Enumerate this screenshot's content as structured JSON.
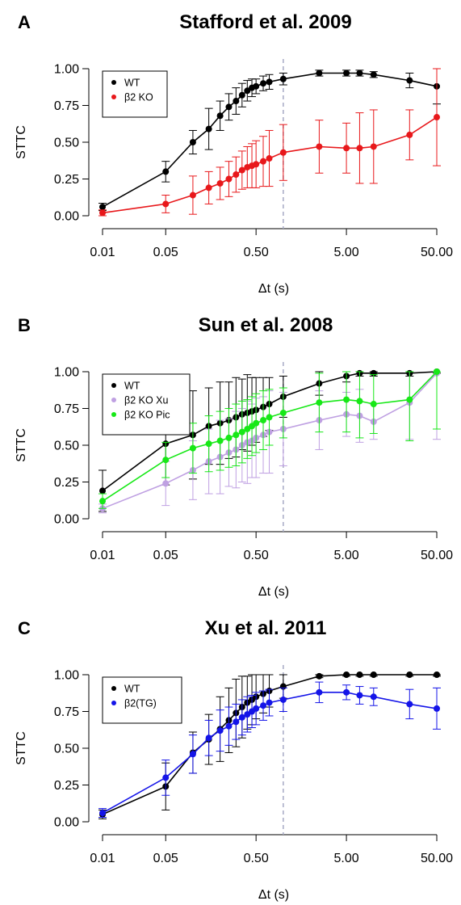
{
  "chart_data": [
    {
      "type": "line",
      "panel_label": "A",
      "title": "Stafford et al. 2009",
      "xlabel": "Δt (s)",
      "ylabel": "STTC",
      "x_scale": "log",
      "x_ticks": [
        0.01,
        0.05,
        0.5,
        5,
        50
      ],
      "x_tick_labels": [
        "0.01",
        "0.05",
        "0.50",
        "5.00",
        "50.00"
      ],
      "y_ticks": [
        0,
        0.25,
        0.5,
        0.75,
        1
      ],
      "y_tick_labels": [
        "0.00",
        "0.25",
        "0.50",
        "0.75",
        "1.00"
      ],
      "ylim": [
        0,
        1
      ],
      "xlim": [
        0.01,
        50
      ],
      "reference_line_x": 1,
      "grid": false,
      "legend_position": "top-left",
      "x": [
        0.01,
        0.05,
        0.1,
        0.15,
        0.2,
        0.25,
        0.3,
        0.35,
        0.4,
        0.45,
        0.5,
        0.6,
        0.7,
        1,
        2.5,
        5,
        7,
        10,
        25,
        50
      ],
      "series": [
        {
          "name": "WT",
          "color": "#000000",
          "values": [
            0.06,
            0.3,
            0.5,
            0.59,
            0.68,
            0.74,
            0.78,
            0.82,
            0.85,
            0.87,
            0.88,
            0.9,
            0.91,
            0.93,
            0.97,
            0.97,
            0.97,
            0.96,
            0.92,
            0.88
          ],
          "err": [
            0.025,
            0.07,
            0.08,
            0.14,
            0.1,
            0.09,
            0.09,
            0.08,
            0.07,
            0.06,
            0.05,
            0.05,
            0.05,
            0.04,
            0.02,
            0.02,
            0.02,
            0.02,
            0.05,
            0.12
          ]
        },
        {
          "name": "β2 KO",
          "color": "#e8181b",
          "values": [
            0.02,
            0.08,
            0.14,
            0.19,
            0.22,
            0.25,
            0.28,
            0.31,
            0.33,
            0.34,
            0.35,
            0.37,
            0.39,
            0.43,
            0.47,
            0.46,
            0.46,
            0.47,
            0.55,
            0.67
          ],
          "err": [
            0.02,
            0.06,
            0.13,
            0.11,
            0.11,
            0.12,
            0.12,
            0.13,
            0.14,
            0.15,
            0.16,
            0.17,
            0.19,
            0.19,
            0.18,
            0.17,
            0.24,
            0.25,
            0.17,
            0.33
          ]
        }
      ]
    },
    {
      "type": "line",
      "panel_label": "B",
      "title": "Sun et al. 2008",
      "xlabel": "Δt (s)",
      "ylabel": "STTC",
      "x_scale": "log",
      "x_ticks": [
        0.01,
        0.05,
        0.5,
        5,
        50
      ],
      "x_tick_labels": [
        "0.01",
        "0.05",
        "0.50",
        "5.00",
        "50.00"
      ],
      "y_ticks": [
        0,
        0.25,
        0.5,
        0.75,
        1
      ],
      "y_tick_labels": [
        "0.00",
        "0.25",
        "0.50",
        "0.75",
        "1.00"
      ],
      "ylim": [
        0,
        1
      ],
      "xlim": [
        0.01,
        50
      ],
      "reference_line_x": 1,
      "grid": false,
      "legend_position": "top-left",
      "x": [
        0.01,
        0.05,
        0.1,
        0.15,
        0.2,
        0.25,
        0.3,
        0.35,
        0.4,
        0.45,
        0.5,
        0.6,
        0.7,
        1,
        2.5,
        5,
        7,
        10,
        25,
        50
      ],
      "series": [
        {
          "name": "WT",
          "color": "#000000",
          "values": [
            0.19,
            0.51,
            0.57,
            0.63,
            0.65,
            0.67,
            0.69,
            0.71,
            0.72,
            0.73,
            0.74,
            0.76,
            0.78,
            0.83,
            0.92,
            0.97,
            0.99,
            0.99,
            0.99,
            1.0
          ],
          "err": [
            0.14,
            0.28,
            0.3,
            0.26,
            0.28,
            0.26,
            0.27,
            0.24,
            0.26,
            0.23,
            0.22,
            0.2,
            0.18,
            0.14,
            0.08,
            0.04,
            0.02,
            0.02,
            0.02,
            0.01
          ]
        },
        {
          "name": "β2 KO Xu",
          "color": "#bfa0e2",
          "values": [
            0.07,
            0.24,
            0.33,
            0.39,
            0.42,
            0.45,
            0.47,
            0.5,
            0.52,
            0.53,
            0.55,
            0.57,
            0.59,
            0.61,
            0.67,
            0.71,
            0.7,
            0.66,
            0.79,
            0.99
          ],
          "err": [
            0.03,
            0.15,
            0.2,
            0.22,
            0.25,
            0.23,
            0.26,
            0.25,
            0.28,
            0.25,
            0.27,
            0.26,
            0.28,
            0.25,
            0.2,
            0.15,
            0.18,
            0.12,
            0.25,
            0.45
          ]
        },
        {
          "name": "β2 KO Pic",
          "color": "#17e817",
          "values": [
            0.12,
            0.4,
            0.48,
            0.51,
            0.53,
            0.55,
            0.57,
            0.59,
            0.61,
            0.63,
            0.65,
            0.67,
            0.69,
            0.72,
            0.79,
            0.81,
            0.8,
            0.78,
            0.81,
            1.0
          ],
          "err": [
            0.05,
            0.12,
            0.17,
            0.19,
            0.2,
            0.2,
            0.21,
            0.21,
            0.2,
            0.2,
            0.2,
            0.2,
            0.19,
            0.17,
            0.2,
            0.22,
            0.25,
            0.2,
            0.28,
            0.39
          ]
        }
      ]
    },
    {
      "type": "line",
      "panel_label": "C",
      "title": "Xu et al. 2011",
      "xlabel": "Δt (s)",
      "ylabel": "STTC",
      "x_scale": "log",
      "x_ticks": [
        0.01,
        0.05,
        0.5,
        5,
        50
      ],
      "x_tick_labels": [
        "0.01",
        "0.05",
        "0.50",
        "5.00",
        "50.00"
      ],
      "y_ticks": [
        0,
        0.25,
        0.5,
        0.75,
        1
      ],
      "y_tick_labels": [
        "0.00",
        "0.25",
        "0.50",
        "0.75",
        "1.00"
      ],
      "ylim": [
        0,
        1
      ],
      "xlim": [
        0.01,
        50
      ],
      "reference_line_x": 1,
      "grid": false,
      "legend_position": "top-left",
      "x": [
        0.01,
        0.05,
        0.1,
        0.15,
        0.2,
        0.25,
        0.3,
        0.35,
        0.4,
        0.45,
        0.5,
        0.6,
        0.7,
        1,
        2.5,
        5,
        7,
        10,
        25,
        50
      ],
      "series": [
        {
          "name": "WT",
          "color": "#000000",
          "values": [
            0.05,
            0.24,
            0.47,
            0.56,
            0.63,
            0.69,
            0.74,
            0.78,
            0.81,
            0.83,
            0.85,
            0.87,
            0.89,
            0.92,
            0.99,
            1.0,
            1.0,
            1.0,
            1.0,
            1.0
          ],
          "err": [
            0.03,
            0.16,
            0.14,
            0.17,
            0.22,
            0.22,
            0.23,
            0.21,
            0.18,
            0.17,
            0.15,
            0.13,
            0.11,
            0.08,
            0.01,
            0.01,
            0.01,
            0.01,
            0.01,
            0.01
          ]
        },
        {
          "name": "β2(TG)",
          "color": "#1414e8",
          "values": [
            0.06,
            0.3,
            0.46,
            0.57,
            0.62,
            0.65,
            0.68,
            0.71,
            0.73,
            0.75,
            0.77,
            0.79,
            0.81,
            0.83,
            0.88,
            0.88,
            0.86,
            0.85,
            0.8,
            0.77
          ],
          "err": [
            0.03,
            0.12,
            0.13,
            0.12,
            0.14,
            0.13,
            0.12,
            0.12,
            0.12,
            0.11,
            0.11,
            0.1,
            0.09,
            0.08,
            0.07,
            0.05,
            0.06,
            0.06,
            0.1,
            0.14
          ]
        }
      ]
    }
  ]
}
